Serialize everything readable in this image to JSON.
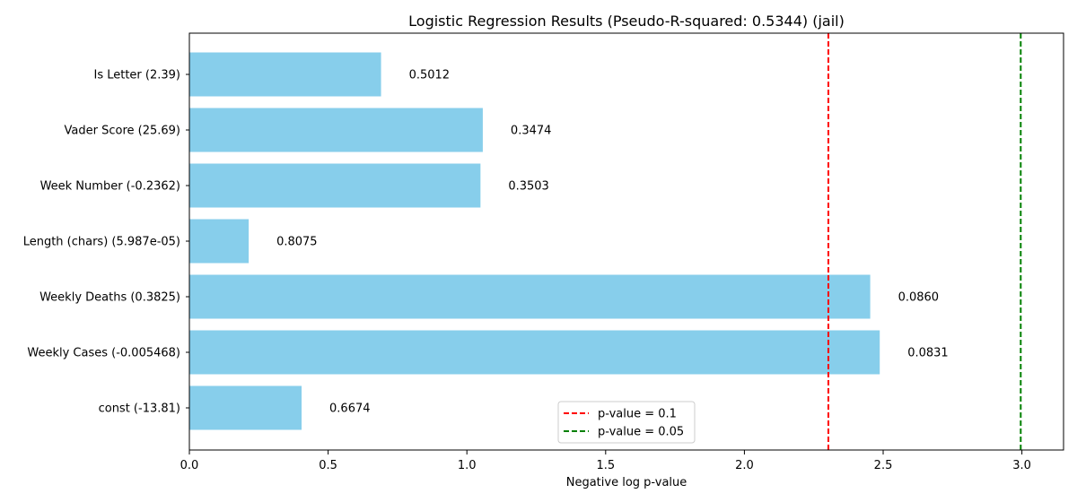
{
  "chart_data": {
    "type": "bar",
    "orientation": "horizontal",
    "title": "Logistic Regression Results (Pseudo-R-squared: 0.5344) (jail)",
    "xlabel": "Negative log p-value",
    "ylabel": "",
    "xlim": [
      0,
      3.15
    ],
    "xticks": [
      "0.0",
      "0.5",
      "1.0",
      "1.5",
      "2.0",
      "2.5",
      "3.0"
    ],
    "categories": [
      "Is Letter (2.39)",
      "Vader Score (25.69)",
      "Week Number (-0.2362)",
      "Length (chars) (5.987e-05)",
      "Weekly Deaths (0.3825)",
      "Weekly Cases (-0.005468)",
      "const (-13.81)"
    ],
    "values": [
      0.6907,
      1.0573,
      1.049,
      0.2138,
      2.4534,
      2.4877,
      0.4044
    ],
    "data_labels": [
      "0.5012",
      "0.3474",
      "0.3503",
      "0.8075",
      "0.0860",
      "0.0831",
      "0.6674"
    ],
    "bar_color": "#87ceeb",
    "reference_lines": [
      {
        "label": "p-value = 0.1",
        "x": 2.302585,
        "color": "#ff0000"
      },
      {
        "label": "p-value = 0.05",
        "x": 2.995732,
        "color": "#008000"
      }
    ],
    "legend_position": "lower-center",
    "grid": false
  }
}
